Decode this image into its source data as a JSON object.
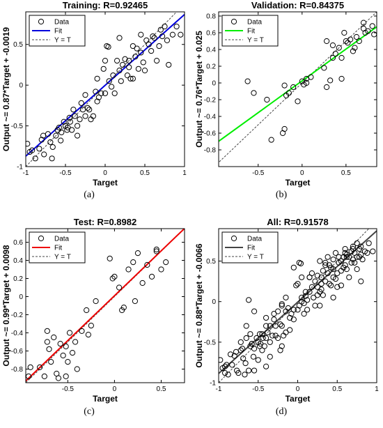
{
  "chart_data": [
    {
      "type": "scatter",
      "title": "Training: R=0.92465",
      "xlabel": "Target",
      "ylabel": "Output ~= 0.87*Target + -0.0019",
      "xlim": [
        -1,
        1
      ],
      "ylim": [
        -1,
        0.9
      ],
      "xticks": [
        -1,
        -0.5,
        0,
        0.5,
        1
      ],
      "yticks": [
        -1,
        -0.5,
        0,
        0.5
      ],
      "fit": {
        "slope": 0.87,
        "intercept": -0.0019,
        "color": "#0000dd"
      },
      "legend": [
        "Data",
        "Fit",
        "Y = T"
      ],
      "panel_label": "(a)",
      "points": [
        [
          -0.98,
          -0.72
        ],
        [
          -0.95,
          -0.82
        ],
        [
          -0.92,
          -0.8
        ],
        [
          -0.88,
          -0.9
        ],
        [
          -0.83,
          -0.78
        ],
        [
          -0.8,
          -0.67
        ],
        [
          -0.78,
          -0.62
        ],
        [
          -0.77,
          -0.85
        ],
        [
          -0.72,
          -0.6
        ],
        [
          -0.69,
          -0.7
        ],
        [
          -0.67,
          -0.9
        ],
        [
          -0.66,
          -0.76
        ],
        [
          -0.6,
          -0.55
        ],
        [
          -0.58,
          -0.52
        ],
        [
          -0.56,
          -0.68
        ],
        [
          -0.55,
          -0.58
        ],
        [
          -0.52,
          -0.45
        ],
        [
          -0.5,
          -0.5
        ],
        [
          -0.48,
          -0.55
        ],
        [
          -0.47,
          -0.52
        ],
        [
          -0.45,
          -0.4
        ],
        [
          -0.44,
          -0.45
        ],
        [
          -0.42,
          -0.55
        ],
        [
          -0.4,
          -0.3
        ],
        [
          -0.38,
          -0.38
        ],
        [
          -0.35,
          -0.5
        ],
        [
          -0.32,
          -0.42
        ],
        [
          -0.3,
          -0.22
        ],
        [
          -0.28,
          -0.3
        ],
        [
          -0.25,
          -0.12
        ],
        [
          -0.22,
          -0.28
        ],
        [
          -0.2,
          -0.3
        ],
        [
          -0.18,
          -0.42
        ],
        [
          -0.15,
          -0.38
        ],
        [
          -0.12,
          -0.08
        ],
        [
          -0.1,
          -0.2
        ],
        [
          -0.08,
          -0.15
        ],
        [
          -0.05,
          -0.1
        ],
        [
          -0.02,
          0.2
        ],
        [
          0.0,
          -0.1
        ],
        [
          0.02,
          0.48
        ],
        [
          0.04,
          0.47
        ],
        [
          0.05,
          0.05
        ],
        [
          0.08,
          -0.02
        ],
        [
          0.1,
          0.12
        ],
        [
          0.12,
          -0.1
        ],
        [
          0.15,
          0.3
        ],
        [
          0.18,
          0.18
        ],
        [
          0.2,
          0.05
        ],
        [
          0.22,
          0.25
        ],
        [
          0.25,
          0.32
        ],
        [
          0.28,
          0.12
        ],
        [
          0.3,
          0.3
        ],
        [
          0.3,
          0.22
        ],
        [
          0.32,
          0.08
        ],
        [
          0.35,
          0.48
        ],
        [
          0.38,
          0.35
        ],
        [
          0.4,
          0.45
        ],
        [
          0.42,
          0.2
        ],
        [
          0.45,
          0.4
        ],
        [
          0.48,
          0.28
        ],
        [
          0.5,
          0.18
        ],
        [
          0.52,
          0.55
        ],
        [
          0.55,
          0.5
        ],
        [
          0.58,
          0.42
        ],
        [
          0.6,
          0.6
        ],
        [
          0.62,
          0.58
        ],
        [
          0.65,
          0.3
        ],
        [
          0.68,
          0.48
        ],
        [
          0.7,
          0.68
        ],
        [
          0.72,
          0.6
        ],
        [
          0.75,
          0.72
        ],
        [
          0.78,
          0.55
        ],
        [
          0.8,
          0.25
        ],
        [
          0.85,
          0.62
        ],
        [
          0.9,
          0.72
        ],
        [
          0.95,
          0.62
        ],
        [
          -0.35,
          -0.62
        ],
        [
          -0.62,
          -0.62
        ],
        [
          -0.25,
          -0.38
        ],
        [
          0.18,
          0.58
        ],
        [
          0.0,
          0.3
        ],
        [
          0.45,
          0.62
        ],
        [
          0.35,
          0.08
        ],
        [
          -0.1,
          0.08
        ]
      ]
    },
    {
      "type": "scatter",
      "title": "Validation: R=0.84375",
      "xlabel": "Target",
      "ylabel": "Output ~= 0.76*Target + 0.025",
      "xlim": [
        -0.95,
        0.85
      ],
      "ylim": [
        -1,
        0.85
      ],
      "xticks": [
        -0.5,
        0,
        0.5
      ],
      "yticks": [
        -0.8,
        -0.6,
        -0.4,
        -0.2,
        0,
        0.2,
        0.4,
        0.6,
        0.8
      ],
      "fit": {
        "slope": 0.76,
        "intercept": 0.025,
        "color": "#00ee00"
      },
      "legend": [
        "Data",
        "Fit",
        "Y = T"
      ],
      "panel_label": "(b)",
      "points": [
        [
          -0.62,
          0.02
        ],
        [
          -0.55,
          -0.12
        ],
        [
          -0.4,
          -0.2
        ],
        [
          -0.35,
          -0.68
        ],
        [
          -0.22,
          -0.6
        ],
        [
          -0.2,
          -0.55
        ],
        [
          -0.2,
          -0.03
        ],
        [
          -0.18,
          -0.15
        ],
        [
          -0.15,
          -0.12
        ],
        [
          -0.1,
          -0.05
        ],
        [
          -0.05,
          -0.22
        ],
        [
          0.0,
          0.02
        ],
        [
          0.02,
          -0.02
        ],
        [
          0.05,
          0.0
        ],
        [
          0.05,
          0.05
        ],
        [
          0.1,
          0.07
        ],
        [
          0.25,
          0.18
        ],
        [
          0.28,
          0.5
        ],
        [
          0.28,
          -0.05
        ],
        [
          0.32,
          0.03
        ],
        [
          0.35,
          0.3
        ],
        [
          0.35,
          0.45
        ],
        [
          0.38,
          0.35
        ],
        [
          0.42,
          0.42
        ],
        [
          0.45,
          0.3
        ],
        [
          0.45,
          0.05
        ],
        [
          0.48,
          0.6
        ],
        [
          0.5,
          0.5
        ],
        [
          0.52,
          0.48
        ],
        [
          0.55,
          0.52
        ],
        [
          0.6,
          0.42
        ],
        [
          0.62,
          0.55
        ],
        [
          0.65,
          0.5
        ],
        [
          0.7,
          0.65
        ],
        [
          0.72,
          0.6
        ],
        [
          0.75,
          0.62
        ],
        [
          0.8,
          0.68
        ],
        [
          0.82,
          0.58
        ],
        [
          0.7,
          0.72
        ],
        [
          0.58,
          0.38
        ]
      ]
    },
    {
      "type": "scatter",
      "title": "Test: R=0.8982",
      "xlabel": "Target",
      "ylabel": "Output ~= 0.99*Target + 0.0098",
      "xlim": [
        -0.95,
        0.75
      ],
      "ylim": [
        -0.95,
        0.75
      ],
      "xticks": [
        -0.5,
        0,
        0.5
      ],
      "yticks": [
        -0.8,
        -0.6,
        -0.4,
        -0.2,
        0,
        0.2,
        0.4,
        0.6
      ],
      "fit": {
        "slope": 0.99,
        "intercept": 0.0098,
        "color": "#ee0000"
      },
      "legend": [
        "Data",
        "Fit",
        "Y = T"
      ],
      "panel_label": "(c)",
      "points": [
        [
          -0.92,
          -0.88
        ],
        [
          -0.9,
          -0.78
        ],
        [
          -0.8,
          -0.78
        ],
        [
          -0.75,
          -0.88
        ],
        [
          -0.72,
          -0.5
        ],
        [
          -0.7,
          -0.58
        ],
        [
          -0.68,
          -0.72
        ],
        [
          -0.65,
          -0.45
        ],
        [
          -0.62,
          -0.85
        ],
        [
          -0.6,
          -0.9
        ],
        [
          -0.58,
          -0.52
        ],
        [
          -0.55,
          -0.65
        ],
        [
          -0.52,
          -0.55
        ],
        [
          -0.5,
          -0.72
        ],
        [
          -0.48,
          -0.4
        ],
        [
          -0.45,
          -0.62
        ],
        [
          -0.42,
          -0.5
        ],
        [
          -0.4,
          -0.8
        ],
        [
          -0.35,
          -0.38
        ],
        [
          -0.3,
          -0.15
        ],
        [
          -0.28,
          -0.42
        ],
        [
          -0.25,
          -0.32
        ],
        [
          -0.2,
          -0.05
        ],
        [
          -0.05,
          0.42
        ],
        [
          -0.02,
          0.2
        ],
        [
          0.0,
          0.22
        ],
        [
          0.05,
          0.1
        ],
        [
          0.08,
          -0.15
        ],
        [
          0.1,
          -0.12
        ],
        [
          0.15,
          0.3
        ],
        [
          0.2,
          0.38
        ],
        [
          0.22,
          -0.05
        ],
        [
          0.25,
          0.48
        ],
        [
          0.3,
          0.15
        ],
        [
          0.35,
          0.35
        ],
        [
          0.4,
          0.22
        ],
        [
          0.45,
          0.5
        ],
        [
          0.45,
          0.52
        ],
        [
          0.5,
          0.3
        ],
        [
          0.55,
          0.38
        ],
        [
          -0.72,
          -0.38
        ],
        [
          -0.52,
          -0.88
        ]
      ]
    },
    {
      "type": "scatter",
      "title": "All: R=0.91578",
      "xlabel": "Target",
      "ylabel": "Output ~= 0.88*Target + -0.0066",
      "xlim": [
        -1,
        1
      ],
      "ylim": [
        -1,
        0.9
      ],
      "xticks": [
        -1,
        -0.5,
        0,
        0.5,
        1
      ],
      "yticks": [
        -1,
        -0.5,
        0,
        0.5
      ],
      "fit": {
        "slope": 0.88,
        "intercept": -0.0066,
        "color": "#444444"
      },
      "legend": [
        "Data",
        "Fit",
        "Y = T"
      ],
      "panel_label": "(d)",
      "points": [
        [
          -0.98,
          -0.72
        ],
        [
          -0.95,
          -0.82
        ],
        [
          -0.92,
          -0.8
        ],
        [
          -0.88,
          -0.9
        ],
        [
          -0.83,
          -0.78
        ],
        [
          -0.8,
          -0.67
        ],
        [
          -0.78,
          -0.62
        ],
        [
          -0.77,
          -0.85
        ],
        [
          -0.72,
          -0.6
        ],
        [
          -0.69,
          -0.7
        ],
        [
          -0.67,
          -0.9
        ],
        [
          -0.66,
          -0.76
        ],
        [
          -0.6,
          -0.55
        ],
        [
          -0.58,
          -0.52
        ],
        [
          -0.56,
          -0.68
        ],
        [
          -0.55,
          -0.58
        ],
        [
          -0.52,
          -0.45
        ],
        [
          -0.5,
          -0.5
        ],
        [
          -0.48,
          -0.55
        ],
        [
          -0.47,
          -0.52
        ],
        [
          -0.45,
          -0.4
        ],
        [
          -0.44,
          -0.45
        ],
        [
          -0.42,
          -0.55
        ],
        [
          -0.4,
          -0.3
        ],
        [
          -0.38,
          -0.38
        ],
        [
          -0.35,
          -0.5
        ],
        [
          -0.32,
          -0.42
        ],
        [
          -0.3,
          -0.22
        ],
        [
          -0.28,
          -0.3
        ],
        [
          -0.25,
          -0.12
        ],
        [
          -0.22,
          -0.28
        ],
        [
          -0.2,
          -0.3
        ],
        [
          -0.18,
          -0.42
        ],
        [
          -0.15,
          -0.38
        ],
        [
          -0.12,
          -0.08
        ],
        [
          -0.1,
          -0.2
        ],
        [
          -0.08,
          -0.15
        ],
        [
          -0.05,
          -0.1
        ],
        [
          -0.02,
          0.2
        ],
        [
          0.0,
          -0.1
        ],
        [
          0.02,
          0.48
        ],
        [
          0.04,
          0.47
        ],
        [
          0.05,
          0.05
        ],
        [
          0.08,
          -0.02
        ],
        [
          0.1,
          0.12
        ],
        [
          0.12,
          -0.1
        ],
        [
          0.15,
          0.3
        ],
        [
          0.18,
          0.18
        ],
        [
          0.2,
          0.05
        ],
        [
          0.22,
          0.25
        ],
        [
          0.25,
          0.32
        ],
        [
          0.28,
          0.12
        ],
        [
          0.3,
          0.3
        ],
        [
          0.3,
          0.22
        ],
        [
          0.32,
          0.08
        ],
        [
          0.35,
          0.48
        ],
        [
          0.38,
          0.35
        ],
        [
          0.4,
          0.45
        ],
        [
          0.42,
          0.2
        ],
        [
          0.45,
          0.4
        ],
        [
          0.48,
          0.28
        ],
        [
          0.5,
          0.18
        ],
        [
          0.52,
          0.55
        ],
        [
          0.55,
          0.5
        ],
        [
          0.58,
          0.42
        ],
        [
          0.6,
          0.6
        ],
        [
          0.62,
          0.58
        ],
        [
          0.65,
          0.3
        ],
        [
          0.68,
          0.48
        ],
        [
          0.7,
          0.68
        ],
        [
          0.72,
          0.6
        ],
        [
          0.75,
          0.72
        ],
        [
          0.78,
          0.55
        ],
        [
          0.8,
          0.25
        ],
        [
          0.85,
          0.62
        ],
        [
          0.9,
          0.72
        ],
        [
          0.95,
          0.62
        ],
        [
          -0.62,
          0.02
        ],
        [
          -0.55,
          -0.12
        ],
        [
          -0.4,
          -0.2
        ],
        [
          -0.35,
          -0.68
        ],
        [
          -0.22,
          -0.6
        ],
        [
          -0.2,
          -0.55
        ],
        [
          -0.2,
          -0.03
        ],
        [
          -0.15,
          -0.12
        ],
        [
          -0.05,
          -0.22
        ],
        [
          0.05,
          0.0
        ],
        [
          0.1,
          0.07
        ],
        [
          0.25,
          0.18
        ],
        [
          0.28,
          0.5
        ],
        [
          0.28,
          -0.05
        ],
        [
          0.35,
          0.45
        ],
        [
          0.42,
          0.42
        ],
        [
          0.45,
          0.05
        ],
        [
          0.48,
          0.6
        ],
        [
          0.52,
          0.48
        ],
        [
          0.62,
          0.55
        ],
        [
          0.7,
          0.65
        ],
        [
          0.8,
          0.68
        ],
        [
          -0.92,
          -0.88
        ],
        [
          -0.9,
          -0.78
        ],
        [
          -0.75,
          -0.88
        ],
        [
          -0.72,
          -0.5
        ],
        [
          -0.7,
          -0.58
        ],
        [
          -0.65,
          -0.45
        ],
        [
          -0.62,
          -0.85
        ],
        [
          -0.58,
          -0.52
        ],
        [
          -0.5,
          -0.72
        ],
        [
          -0.48,
          -0.4
        ],
        [
          -0.4,
          -0.8
        ],
        [
          -0.3,
          -0.15
        ],
        [
          -0.28,
          -0.42
        ],
        [
          -0.2,
          -0.05
        ],
        [
          -0.05,
          0.42
        ],
        [
          0.0,
          0.22
        ],
        [
          0.08,
          -0.15
        ],
        [
          0.15,
          0.3
        ],
        [
          0.22,
          -0.05
        ],
        [
          0.3,
          0.15
        ],
        [
          0.4,
          0.22
        ],
        [
          0.45,
          0.52
        ],
        [
          0.55,
          0.38
        ],
        [
          0.6,
          0.65
        ],
        [
          0.65,
          0.55
        ],
        [
          0.68,
          0.62
        ],
        [
          0.72,
          0.48
        ],
        [
          0.75,
          0.55
        ],
        [
          0.78,
          0.65
        ],
        [
          0.82,
          0.52
        ],
        [
          0.88,
          0.6
        ],
        [
          -0.85,
          -0.65
        ],
        [
          -0.6,
          -0.4
        ],
        [
          -0.45,
          -0.6
        ],
        [
          -0.35,
          -0.3
        ],
        [
          -0.25,
          -0.45
        ],
        [
          -0.15,
          0.05
        ],
        [
          -0.1,
          -0.35
        ],
        [
          0.05,
          0.3
        ],
        [
          0.12,
          0.02
        ],
        [
          0.18,
          0.35
        ],
        [
          0.25,
          0.08
        ],
        [
          0.35,
          0.25
        ],
        [
          0.38,
          0.55
        ],
        [
          0.5,
          0.35
        ],
        [
          0.55,
          0.2
        ],
        [
          0.58,
          0.55
        ],
        [
          0.62,
          0.4
        ],
        [
          0.7,
          0.52
        ],
        [
          0.75,
          0.4
        ],
        [
          0.8,
          0.58
        ],
        [
          -0.65,
          -0.3
        ],
        [
          -0.55,
          -0.85
        ],
        [
          -0.4,
          -0.45
        ],
        [
          0.02,
          -0.05
        ],
        [
          0.15,
          0.12
        ],
        [
          0.32,
          0.38
        ],
        [
          0.45,
          0.3
        ],
        [
          0.6,
          0.45
        ]
      ]
    }
  ]
}
